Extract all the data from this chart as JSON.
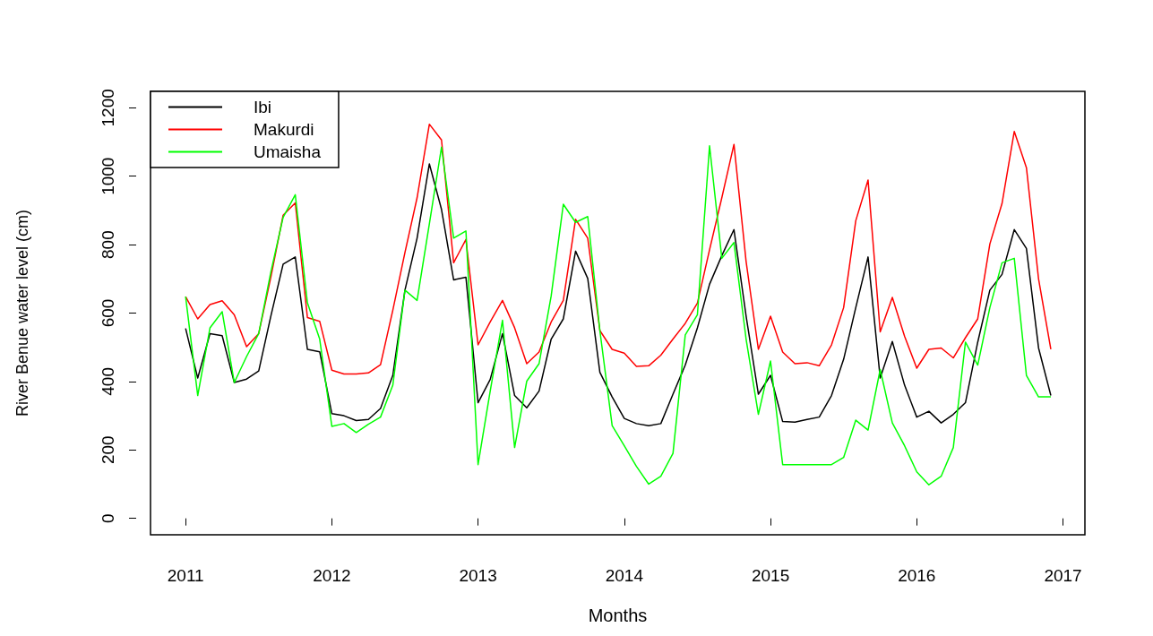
{
  "chart_data": {
    "type": "line",
    "xlabel": "Months",
    "ylabel": "River Benue water level (cm)",
    "x": [
      2011,
      2011.083,
      2011.167,
      2011.25,
      2011.333,
      2011.417,
      2011.5,
      2011.583,
      2011.667,
      2011.75,
      2011.833,
      2011.917,
      2012,
      2012.083,
      2012.167,
      2012.25,
      2012.333,
      2012.417,
      2012.5,
      2012.583,
      2012.667,
      2012.75,
      2012.833,
      2012.917,
      2013,
      2013.083,
      2013.167,
      2013.25,
      2013.333,
      2013.417,
      2013.5,
      2013.583,
      2013.667,
      2013.75,
      2013.833,
      2013.917,
      2014,
      2014.083,
      2014.167,
      2014.25,
      2014.333,
      2014.417,
      2014.5,
      2014.583,
      2014.667,
      2014.75,
      2014.833,
      2014.917,
      2015,
      2015.083,
      2015.167,
      2015.25,
      2015.333,
      2015.417,
      2015.5,
      2015.583,
      2015.667,
      2015.75,
      2015.833,
      2015.917,
      2016,
      2016.083,
      2016.167,
      2016.25,
      2016.333,
      2016.417,
      2016.5,
      2016.583,
      2016.667,
      2016.75,
      2016.833,
      2016.917
    ],
    "series": [
      {
        "name": "Ibi",
        "color": "#000000",
        "values": [
          555,
          410,
          540,
          534,
          397,
          407,
          431,
          591,
          743,
          764,
          494,
          487,
          306,
          300,
          286,
          289,
          321,
          418,
          667,
          819,
          1036,
          903,
          697,
          705,
          338,
          406,
          540,
          359,
          323,
          372,
          524,
          583,
          781,
          701,
          427,
          355,
          292,
          277,
          271,
          277,
          363,
          448,
          557,
          684,
          768,
          844,
          591,
          363,
          418,
          283,
          281,
          289,
          296,
          359,
          465,
          616,
          764,
          410,
          517,
          389,
          296,
          313,
          279,
          304,
          338,
          515,
          667,
          713,
          844,
          789,
          498,
          359
        ]
      },
      {
        "name": "Makurdi",
        "color": "#ff0000",
        "values": [
          648,
          583,
          625,
          636,
          595,
          502,
          540,
          705,
          886,
          922,
          587,
          576,
          433,
          422,
          422,
          425,
          449,
          608,
          777,
          937,
          1152,
          1106,
          747,
          815,
          507,
          574,
          637,
          557,
          452,
          486,
          574,
          637,
          874,
          819,
          549,
          494,
          483,
          444,
          446,
          477,
          524,
          570,
          629,
          785,
          937,
          1093,
          751,
          494,
          591,
          486,
          452,
          455,
          446,
          507,
          616,
          870,
          989,
          545,
          646,
          532,
          439,
          494,
          498,
          469,
          528,
          583,
          802,
          920,
          1131,
          1025,
          700,
          494
        ]
      },
      {
        "name": "Umaisha",
        "color": "#00ff00",
        "values": [
          648,
          359,
          557,
          604,
          397,
          473,
          540,
          720,
          880,
          946,
          630,
          524,
          269,
          277,
          251,
          275,
          296,
          389,
          667,
          637,
          861,
          1085,
          819,
          840,
          157,
          372,
          579,
          207,
          401,
          452,
          650,
          918,
          865,
          882,
          549,
          271,
          212,
          152,
          100,
          123,
          190,
          536,
          595,
          1089,
          760,
          806,
          524,
          304,
          460,
          157,
          157,
          157,
          157,
          157,
          178,
          287,
          258,
          435,
          279,
          212,
          136,
          98,
          123,
          207,
          515,
          448,
          616,
          747,
          760,
          418,
          355,
          355
        ]
      }
    ],
    "xlim": [
      2010.76,
      2017.15
    ],
    "xticks": [
      2011,
      2012,
      2013,
      2014,
      2015,
      2016,
      2017
    ],
    "ylim": [
      -48,
      1248
    ],
    "yticks": [
      0,
      200,
      400,
      600,
      800,
      1000,
      1200
    ],
    "grid": false,
    "legend": "top left",
    "marker": "none",
    "line_style": "solid"
  }
}
